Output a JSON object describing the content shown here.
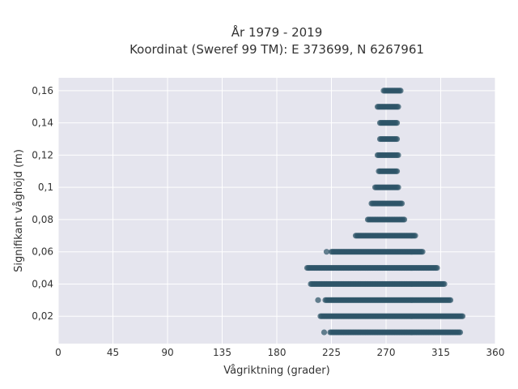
{
  "chart_data": {
    "type": "scatter",
    "title_line1": "År 1979 - 2019",
    "title_line2": "Koordinat (Sweref 99 TM): E 373699, N 6267961",
    "xlabel": "Vågriktning (grader)",
    "ylabel": "Signifikant våghöjd (m)",
    "xlim": [
      0,
      360
    ],
    "ylim": [
      0.003,
      0.168
    ],
    "x_ticks": [
      0,
      45,
      90,
      135,
      180,
      225,
      270,
      315,
      360
    ],
    "x_tick_labels": [
      "0",
      "45",
      "90",
      "135",
      "180",
      "225",
      "270",
      "315",
      "360"
    ],
    "y_ticks": [
      0.02,
      0.04,
      0.06,
      0.08,
      0.1,
      0.12,
      0.14,
      0.16
    ],
    "y_tick_labels": [
      "0,02",
      "0,04",
      "0,06",
      "0,08",
      "0,1",
      "0,12",
      "0,14",
      "0,16"
    ],
    "grid": true,
    "point_color": "#2e5468",
    "plot_background": "#e5e5ee",
    "series": [
      {
        "height": 0.01,
        "x_min": 224,
        "x_max": 331,
        "isolated": [
          219
        ]
      },
      {
        "height": 0.02,
        "x_min": 216,
        "x_max": 333,
        "isolated": []
      },
      {
        "height": 0.03,
        "x_min": 220,
        "x_max": 323,
        "isolated": [
          214
        ]
      },
      {
        "height": 0.04,
        "x_min": 208,
        "x_max": 318,
        "isolated": []
      },
      {
        "height": 0.05,
        "x_min": 205,
        "x_max": 312,
        "isolated": []
      },
      {
        "height": 0.06,
        "x_min": 225,
        "x_max": 300,
        "isolated": [
          221
        ]
      },
      {
        "height": 0.07,
        "x_min": 245,
        "x_max": 294,
        "isolated": []
      },
      {
        "height": 0.08,
        "x_min": 255,
        "x_max": 285,
        "isolated": []
      },
      {
        "height": 0.09,
        "x_min": 258,
        "x_max": 283,
        "isolated": []
      },
      {
        "height": 0.1,
        "x_min": 261,
        "x_max": 280,
        "isolated": []
      },
      {
        "height": 0.11,
        "x_min": 264,
        "x_max": 279,
        "isolated": []
      },
      {
        "height": 0.12,
        "x_min": 263,
        "x_max": 280,
        "isolated": []
      },
      {
        "height": 0.13,
        "x_min": 265,
        "x_max": 279,
        "isolated": []
      },
      {
        "height": 0.14,
        "x_min": 265,
        "x_max": 279,
        "isolated": []
      },
      {
        "height": 0.15,
        "x_min": 263,
        "x_max": 280,
        "isolated": []
      },
      {
        "height": 0.16,
        "x_min": 268,
        "x_max": 282,
        "isolated": []
      }
    ]
  }
}
